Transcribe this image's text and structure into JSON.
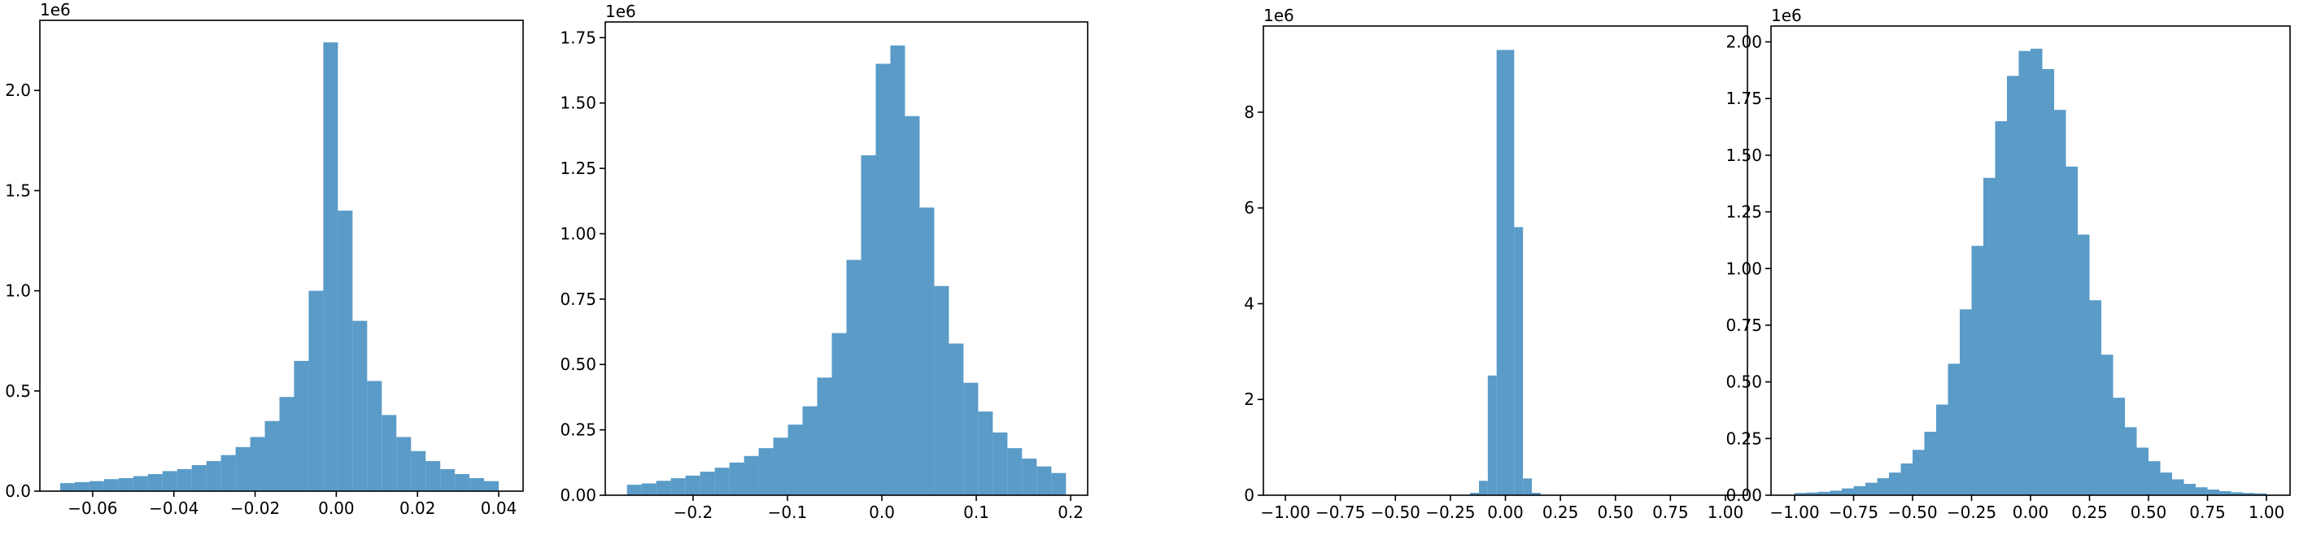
{
  "chart_data": [
    {
      "type": "histogram",
      "offset_label": "1e6",
      "color": "#5a9bc8",
      "bins": [
        -0.068,
        -0.0644,
        -0.0608,
        -0.0572,
        -0.0536,
        -0.05,
        -0.0464,
        -0.0428,
        -0.0392,
        -0.0356,
        -0.032,
        -0.0284,
        -0.0248,
        -0.0212,
        -0.0176,
        -0.014,
        -0.0104,
        -0.0068,
        -0.0032,
        0.0004,
        0.004,
        0.0076,
        0.0112,
        0.0148,
        0.0184,
        0.022,
        0.0256,
        0.0292,
        0.0328,
        0.0364,
        0.04
      ],
      "values": [
        0.04,
        0.045,
        0.05,
        0.06,
        0.065,
        0.075,
        0.085,
        0.1,
        0.11,
        0.13,
        0.15,
        0.18,
        0.22,
        0.27,
        0.35,
        0.47,
        0.65,
        1.0,
        2.24,
        1.4,
        0.85,
        0.55,
        0.38,
        0.27,
        0.2,
        0.15,
        0.11,
        0.085,
        0.065,
        0.05
      ],
      "xlim": [
        -0.073,
        0.046
      ],
      "xticks": [
        {
          "value": -0.06,
          "label": "−0.06"
        },
        {
          "value": -0.04,
          "label": "−0.04"
        },
        {
          "value": -0.02,
          "label": "−0.02"
        },
        {
          "value": 0,
          "label": "0.00"
        },
        {
          "value": 0.02,
          "label": "0.02"
        },
        {
          "value": 0.04,
          "label": "0.04"
        }
      ],
      "ylim": [
        0,
        2.35
      ],
      "yticks": [
        {
          "value": 0,
          "label": "0.0"
        },
        0.5,
        {
          "value": 1,
          "label": "1.0"
        },
        1.5,
        {
          "value": 2,
          "label": "2.0"
        }
      ]
    },
    {
      "type": "histogram",
      "offset_label": "1e6",
      "color": "#5a9bc8",
      "bins": [
        -0.27,
        -0.2545,
        -0.239,
        -0.2235,
        -0.208,
        -0.1925,
        -0.177,
        -0.1615,
        -0.146,
        -0.1305,
        -0.115,
        -0.0995,
        -0.084,
        -0.0685,
        -0.053,
        -0.0375,
        -0.022,
        -0.0065,
        0.009,
        0.0245,
        0.04,
        0.0555,
        0.071,
        0.0865,
        0.102,
        0.1175,
        0.133,
        0.1485,
        0.164,
        0.1795,
        0.195
      ],
      "values": [
        0.04,
        0.045,
        0.055,
        0.065,
        0.075,
        0.09,
        0.105,
        0.125,
        0.15,
        0.18,
        0.22,
        0.27,
        0.34,
        0.45,
        0.62,
        0.9,
        1.3,
        1.65,
        1.72,
        1.45,
        1.1,
        0.8,
        0.58,
        0.43,
        0.32,
        0.24,
        0.18,
        0.14,
        0.11,
        0.085
      ],
      "xlim": [
        -0.293,
        0.218
      ],
      "xticks": [
        {
          "value": -0.2,
          "label": "−0.2"
        },
        {
          "value": -0.1,
          "label": "−0.1"
        },
        {
          "value": 0,
          "label": "0.0"
        },
        0.1,
        0.2
      ],
      "ylim": [
        0,
        1.81
      ],
      "yticks": [
        {
          "value": 0,
          "label": "0.00"
        },
        0.25,
        {
          "value": 0.5,
          "label": "0.50"
        },
        0.75,
        {
          "value": 1,
          "label": "1.00"
        },
        1.25,
        {
          "value": 1.5,
          "label": "1.50"
        },
        1.75
      ]
    },
    {
      "type": "histogram",
      "offset_label": "1e6",
      "color": "#5a9bc8",
      "bins": [
        -1.0,
        -0.96,
        -0.92,
        -0.88,
        -0.84,
        -0.8,
        -0.76,
        -0.72,
        -0.68,
        -0.64,
        -0.6,
        -0.56,
        -0.52,
        -0.48,
        -0.44,
        -0.4,
        -0.36,
        -0.32,
        -0.28,
        -0.24,
        -0.2,
        -0.16,
        -0.12,
        -0.08,
        -0.04,
        0,
        0.04,
        0.08,
        0.12,
        0.16,
        0.2,
        0.24,
        0.28,
        0.32,
        0.36,
        0.4,
        0.44,
        0.48,
        0.52,
        0.56,
        0.6,
        0.64,
        0.68,
        0.72,
        0.76,
        0.8,
        0.84,
        0.88,
        0.92,
        0.96,
        1.0
      ],
      "values": [
        0,
        0,
        0,
        0,
        0,
        0,
        0,
        0,
        0,
        0,
        0,
        0,
        0,
        0,
        0,
        0,
        0,
        0,
        0,
        0,
        0,
        0.05,
        0.3,
        2.5,
        9.3,
        9.3,
        5.6,
        0.35,
        0.05,
        0,
        0,
        0,
        0,
        0,
        0,
        0,
        0,
        0,
        0,
        0,
        0,
        0,
        0,
        0,
        0,
        0,
        0,
        0,
        0,
        0
      ],
      "xlim": [
        -1.1,
        1.1
      ],
      "xticks": [
        {
          "value": -1,
          "label": "−1.00"
        },
        {
          "value": -0.75,
          "label": "−0.75"
        },
        {
          "value": -0.5,
          "label": "−0.50"
        },
        {
          "value": -0.25,
          "label": "−0.25"
        },
        {
          "value": 0,
          "label": "0.00"
        },
        0.25,
        {
          "value": 0.5,
          "label": "0.50"
        },
        0.75,
        {
          "value": 1,
          "label": "1.00"
        }
      ],
      "ylim": [
        0,
        9.8
      ],
      "yticks": [
        0,
        2,
        4,
        6,
        8
      ]
    },
    {
      "type": "histogram",
      "offset_label": "1e6",
      "color": "#5a9bc8",
      "bins": [
        -1.0,
        -0.95,
        -0.9,
        -0.85,
        -0.8,
        -0.75,
        -0.7,
        -0.65,
        -0.6,
        -0.55,
        -0.5,
        -0.45,
        -0.4,
        -0.35,
        -0.3,
        -0.25,
        -0.2,
        -0.15,
        -0.1,
        -0.05,
        0,
        0.05,
        0.1,
        0.15,
        0.2,
        0.25,
        0.3,
        0.35,
        0.4,
        0.45,
        0.5,
        0.55,
        0.6,
        0.65,
        0.7,
        0.75,
        0.8,
        0.85,
        0.9,
        0.95,
        1.0
      ],
      "values": [
        0.01,
        0.012,
        0.015,
        0.02,
        0.03,
        0.04,
        0.055,
        0.075,
        0.1,
        0.14,
        0.2,
        0.28,
        0.4,
        0.58,
        0.82,
        1.1,
        1.4,
        1.65,
        1.85,
        1.96,
        1.97,
        1.88,
        1.7,
        1.45,
        1.15,
        0.86,
        0.62,
        0.43,
        0.3,
        0.21,
        0.15,
        0.1,
        0.07,
        0.05,
        0.035,
        0.025,
        0.018,
        0.013,
        0.01,
        0.008
      ],
      "xlim": [
        -1.1,
        1.1
      ],
      "xticks": [
        {
          "value": -1,
          "label": "−1.00"
        },
        {
          "value": -0.75,
          "label": "−0.75"
        },
        {
          "value": -0.5,
          "label": "−0.50"
        },
        {
          "value": -0.25,
          "label": "−0.25"
        },
        {
          "value": 0,
          "label": "0.00"
        },
        0.25,
        {
          "value": 0.5,
          "label": "0.50"
        },
        0.75,
        {
          "value": 1,
          "label": "1.00"
        }
      ],
      "ylim": [
        0,
        2.07
      ],
      "yticks": [
        {
          "value": 0,
          "label": "0.00"
        },
        0.25,
        {
          "value": 0.5,
          "label": "0.50"
        },
        0.75,
        {
          "value": 1,
          "label": "1.00"
        },
        1.25,
        {
          "value": 1.5,
          "label": "1.50"
        },
        1.75,
        {
          "value": 2,
          "label": "2.00"
        }
      ]
    }
  ]
}
